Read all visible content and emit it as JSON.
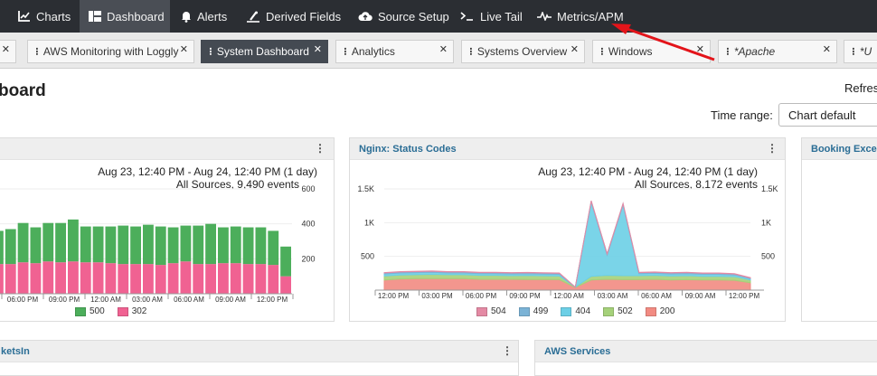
{
  "nav": {
    "items": [
      {
        "label": "Charts",
        "icon": "chart-icon"
      },
      {
        "label": "Dashboard",
        "icon": "dashboard-icon"
      },
      {
        "label": "Alerts",
        "icon": "bell-icon"
      },
      {
        "label": "Derived Fields",
        "icon": "derived-fields-icon"
      },
      {
        "label": "Source Setup",
        "icon": "cloud-upload-icon"
      },
      {
        "label": "Live Tail",
        "icon": "terminal-icon"
      },
      {
        "label": "Metrics/APM",
        "icon": "pulse-icon"
      }
    ],
    "active": "Dashboard"
  },
  "tabs": [
    {
      "label": "AWS Monitoring with Loggly"
    },
    {
      "label": "System Dashboard"
    },
    {
      "label": "Analytics"
    },
    {
      "label": "Systems Overview"
    },
    {
      "label": "Windows"
    },
    {
      "label": "*Apache"
    },
    {
      "label": "*U"
    }
  ],
  "page": {
    "title": "board",
    "refresh_label": "Refres",
    "time_range_label": "Time range:",
    "time_range_value": "Chart default"
  },
  "colors": {
    "accent_title": "#2a6d95",
    "nav_bg": "#2b2e33",
    "arrow": "#e3141a"
  },
  "panels": {
    "left": {
      "date_range": "Aug 23, 12:40 PM - Aug 24, 12:40 PM  (1 day)",
      "events": "All Sources, 9,490 events",
      "legend": [
        "500",
        "302"
      ]
    },
    "nginx": {
      "title": "Nginx: Status Codes",
      "date_range": "Aug 23, 12:40 PM - Aug 24, 12:40 PM  (1 day)",
      "events": "All Sources, 8,172 events",
      "legend": [
        "504",
        "499",
        "404",
        "502",
        "200"
      ]
    },
    "booking": {
      "title": "Booking Excep"
    },
    "bottom_left": {
      "title": "ketsIn"
    },
    "aws_services": {
      "title": "AWS Services"
    }
  },
  "chart_data": [
    {
      "type": "bar",
      "stacked": true,
      "x_tick_labels": [
        "06:00 PM",
        "09:00 PM",
        "12:00 AM",
        "03:00 AM",
        "06:00 AM",
        "09:00 AM",
        "12:00 PM"
      ],
      "y_ticks": [
        200,
        400,
        600
      ],
      "ylim": [
        0,
        600
      ],
      "series": [
        {
          "name": "302",
          "color": "#f06292",
          "values": [
            170,
            170,
            180,
            175,
            185,
            180,
            185,
            180,
            180,
            175,
            170,
            170,
            170,
            165,
            175,
            185,
            170,
            170,
            175,
            175,
            170,
            170,
            165,
            100
          ]
        },
        {
          "name": "500",
          "color": "#4cae5b",
          "values": [
            190,
            200,
            225,
            205,
            220,
            225,
            240,
            205,
            205,
            210,
            220,
            215,
            225,
            220,
            205,
            205,
            220,
            230,
            205,
            210,
            210,
            210,
            195,
            170
          ]
        }
      ]
    },
    {
      "type": "area",
      "stacked": true,
      "x_tick_labels": [
        "12:00 PM",
        "03:00 PM",
        "06:00 PM",
        "09:00 PM",
        "12:00 AM",
        "03:00 AM",
        "06:00 AM",
        "09:00 AM",
        "12:00 PM"
      ],
      "y_ticks": [
        "500",
        "1K",
        "1.5K"
      ],
      "ylim": [
        0,
        1500
      ],
      "series": [
        {
          "name": "200",
          "color": "#f28b82",
          "values": [
            150,
            165,
            170,
            170,
            170,
            170,
            160,
            160,
            160,
            158,
            158,
            155,
            40,
            150,
            160,
            155,
            155,
            160,
            150,
            155,
            150,
            150,
            145,
            110
          ]
        },
        {
          "name": "502",
          "color": "#a5d17a",
          "values": [
            60,
            60,
            60,
            65,
            60,
            60,
            60,
            60,
            55,
            60,
            55,
            55,
            5,
            55,
            60,
            60,
            60,
            60,
            60,
            60,
            55,
            55,
            55,
            40
          ]
        },
        {
          "name": "404",
          "color": "#6ccfe6",
          "values": [
            30,
            30,
            30,
            30,
            25,
            25,
            25,
            25,
            25,
            25,
            25,
            25,
            0,
            1100,
            300,
            1050,
            30,
            30,
            30,
            30,
            30,
            30,
            25,
            20
          ]
        },
        {
          "name": "499",
          "color": "#7bb3d6",
          "values": [
            15,
            15,
            15,
            15,
            15,
            15,
            15,
            15,
            15,
            15,
            15,
            15,
            0,
            15,
            15,
            15,
            15,
            15,
            15,
            15,
            15,
            15,
            15,
            10
          ]
        },
        {
          "name": "504",
          "color": "#e48aa4",
          "values": [
            5,
            5,
            5,
            5,
            5,
            5,
            5,
            5,
            5,
            5,
            5,
            5,
            0,
            5,
            5,
            5,
            5,
            5,
            5,
            5,
            5,
            5,
            5,
            5
          ]
        }
      ]
    }
  ]
}
